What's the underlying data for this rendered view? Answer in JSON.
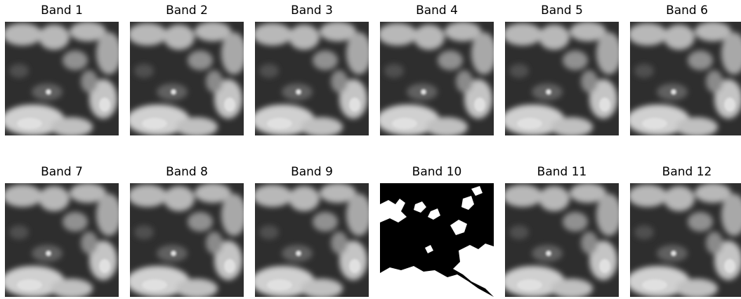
{
  "panels": [
    {
      "title": "Band 1"
    },
    {
      "title": "Band 2"
    },
    {
      "title": "Band 3"
    },
    {
      "title": "Band 4"
    },
    {
      "title": "Band 5"
    },
    {
      "title": "Band 6"
    },
    {
      "title": "Band 7"
    },
    {
      "title": "Band 8"
    },
    {
      "title": "Band 9"
    },
    {
      "title": "Band 10"
    },
    {
      "title": "Band 11"
    },
    {
      "title": "Band 12"
    }
  ]
}
